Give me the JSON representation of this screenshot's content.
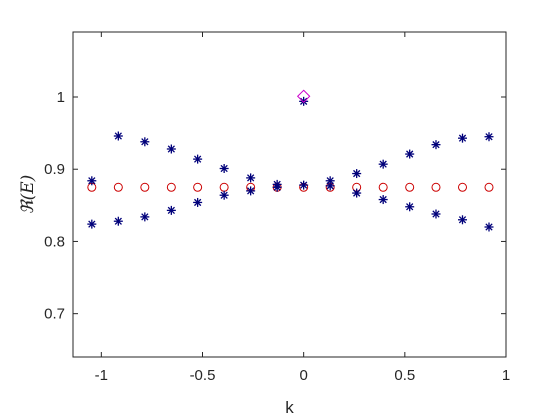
{
  "chart_data": {
    "type": "scatter",
    "xlabel": "k",
    "ylabel": "ℜ(E)",
    "xlim": [
      -1.14,
      1.0
    ],
    "ylim": [
      0.64,
      1.09
    ],
    "xticks": [
      -1,
      -0.5,
      0,
      0.5,
      1
    ],
    "xtick_labels": [
      "-1",
      "-0.5",
      "0",
      "0.5",
      "1"
    ],
    "yticks": [
      0.7,
      0.8,
      0.9,
      1.0
    ],
    "ytick_labels": [
      "0.7",
      "0.8",
      "0.9",
      "1"
    ],
    "grid": false,
    "series": [
      {
        "marker": "circle",
        "color": "#cc0000",
        "x": [
          -1.047,
          -0.916,
          -0.785,
          -0.654,
          -0.524,
          -0.393,
          -0.262,
          -0.131,
          0.0,
          0.131,
          0.262,
          0.393,
          0.524,
          0.654,
          0.785,
          0.916
        ],
        "y": [
          0.875,
          0.875,
          0.875,
          0.875,
          0.875,
          0.875,
          0.875,
          0.875,
          0.875,
          0.875,
          0.875,
          0.875,
          0.875,
          0.875,
          0.875,
          0.875
        ]
      },
      {
        "marker": "star",
        "color": "#00007a",
        "x": [
          -1.047,
          -0.916,
          -0.785,
          -0.654,
          -0.524,
          -0.393,
          -0.262,
          -0.131,
          0.0,
          0.131,
          0.262,
          0.393,
          0.524,
          0.654,
          0.785,
          0.916,
          -1.047,
          -0.916,
          -0.785,
          -0.654,
          -0.524,
          -0.393,
          -0.262,
          -0.131,
          0.0,
          0.131,
          0.262,
          0.393,
          0.524,
          0.654,
          0.785,
          0.916
        ],
        "y": [
          0.884,
          0.946,
          0.938,
          0.928,
          0.914,
          0.901,
          0.888,
          0.879,
          0.994,
          0.884,
          0.894,
          0.907,
          0.921,
          0.934,
          0.943,
          0.945,
          0.824,
          0.828,
          0.834,
          0.843,
          0.854,
          0.864,
          0.87,
          0.875,
          0.878,
          0.877,
          0.867,
          0.858,
          0.848,
          0.838,
          0.83,
          0.82
        ]
      },
      {
        "marker": "diamond",
        "color": "#cc00cc",
        "x": [
          0.0
        ],
        "y": [
          1.001
        ]
      }
    ]
  }
}
